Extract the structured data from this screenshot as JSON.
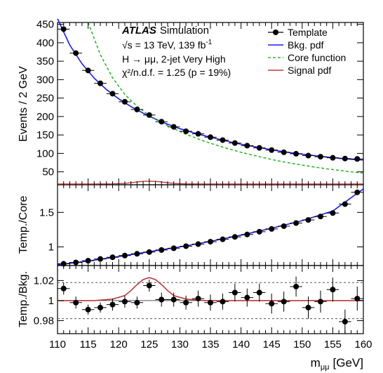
{
  "chart_data": {
    "type": "scatter",
    "experiment": "ATLAS",
    "experiment_suffix": "Simulation",
    "energy_line": "√s = 13 TeV, 139 fb",
    "lumi_exp": "-1",
    "channel_line": "H → μμ, 2-jet Very High",
    "chi2_line": "χ²/n.d.f. = 1.25 (p = 19%)",
    "xlabel": "m",
    "xlabel_sub": "μμ",
    "xlabel_unit": "[GeV]",
    "xlim": [
      110,
      160
    ],
    "xticks": [
      110,
      115,
      120,
      125,
      130,
      135,
      140,
      145,
      150,
      155,
      160
    ],
    "legend": [
      {
        "label": "Template",
        "style": "marker",
        "color": "#000000"
      },
      {
        "label": "Bkg. pdf",
        "style": "line",
        "color": "#1a1aff"
      },
      {
        "label": "Core function",
        "style": "dashed",
        "color": "#2db92d"
      },
      {
        "label": "Signal pdf",
        "style": "line",
        "color": "#c0393b"
      }
    ],
    "panels": [
      {
        "name": "main",
        "ylabel": "Events / 2 GeV",
        "ylim": [
          15,
          455
        ],
        "yticks": [
          50,
          100,
          150,
          200,
          250,
          300,
          350,
          400,
          450
        ],
        "series": [
          {
            "name": "Template",
            "x": [
              111,
              113,
              115,
              117,
              119,
              121,
              123,
              125,
              127,
              129,
              131,
              133,
              135,
              137,
              139,
              141,
              143,
              145,
              147,
              149,
              151,
              153,
              155,
              157,
              159
            ],
            "y": [
              437,
              372,
              325,
              290,
              262,
              240,
              219,
              204,
              186,
              172,
              160,
              153,
              144,
              136,
              128,
              121,
              115,
              109,
              103,
              99,
              94,
              91,
              88,
              86,
              85
            ]
          },
          {
            "name": "Bkg. pdf",
            "x": [
              110,
              112,
              114,
              116,
              118,
              120,
              122,
              124,
              126,
              128,
              130,
              132,
              134,
              136,
              138,
              140,
              142,
              144,
              146,
              148,
              150,
              152,
              154,
              156,
              158,
              160
            ],
            "y": [
              465,
              394,
              343,
              304,
              273,
              248,
              227,
              209,
              193,
              179,
              167,
              157,
              148,
              140,
              132,
              125,
              119,
              113,
              107,
              102,
              98,
              94,
              90,
              87,
              84,
              82
            ]
          },
          {
            "name": "Core function",
            "x": [
              115,
              117,
              119,
              121,
              123,
              125,
              128,
              131,
              134,
              137,
              140,
              143,
              146,
              149,
              152,
              155,
              158,
              160
            ],
            "y": [
              455,
              368,
              305,
              260,
              228,
              203,
              175,
              152,
              133,
              117,
              103,
              91,
              80,
              71,
              63,
              56,
              50,
              47
            ]
          }
        ]
      },
      {
        "name": "ratio-core",
        "ylabel": "Temp./Core",
        "ylim": [
          0.73,
          1.9
        ],
        "yticks": [
          1,
          1.5
        ],
        "series": [
          {
            "name": "Template",
            "x": [
              111,
              113,
              115,
              117,
              119,
              121,
              123,
              125,
              127,
              129,
              131,
              133,
              135,
              137,
              139,
              141,
              143,
              145,
              147,
              149,
              151,
              153,
              155,
              157,
              159
            ],
            "y": [
              0.755,
              0.775,
              0.8,
              0.825,
              0.85,
              0.875,
              0.9,
              0.925,
              0.955,
              0.98,
              1.01,
              1.04,
              1.075,
              1.11,
              1.145,
              1.18,
              1.22,
              1.26,
              1.3,
              1.345,
              1.39,
              1.44,
              1.49,
              1.62,
              1.79
            ]
          },
          {
            "name": "Bkg. pdf / Core",
            "x": [
              110,
              115,
              120,
              125,
              130,
              135,
              140,
              145,
              150,
              155,
              160
            ],
            "y": [
              0.74,
              0.795,
              0.86,
              0.93,
              1.0,
              1.08,
              1.17,
              1.27,
              1.38,
              1.52,
              1.84
            ]
          }
        ]
      },
      {
        "name": "ratio-bkg",
        "ylabel": "Temp./Bkg.",
        "ylim": [
          0.967,
          1.035
        ],
        "yticks": [
          0.98,
          1,
          1.02
        ],
        "ytick_labels": [
          "0.98",
          "1",
          "1.02"
        ],
        "reference_lines": [
          0.982,
          1.0,
          1.018
        ],
        "series": [
          {
            "name": "Template",
            "x": [
              111,
              113,
              115,
              117,
              119,
              121,
              123,
              125,
              127,
              129,
              131,
              133,
              135,
              137,
              139,
              141,
              143,
              145,
              147,
              149,
              151,
              153,
              155,
              157,
              159
            ],
            "y": [
              1.012,
              0.998,
              0.991,
              0.993,
              0.996,
              0.999,
              0.998,
              1.015,
              1.001,
              1.001,
              0.998,
              1.002,
              0.998,
              0.999,
              1.008,
              1.003,
              1.008,
              0.997,
              0.999,
              1.014,
              0.993,
              0.999,
              1.011,
              0.979,
              1.002
            ],
            "err": [
              0.006,
              0.006,
              0.005,
              0.005,
              0.006,
              0.006,
              0.006,
              0.006,
              0.007,
              0.007,
              0.007,
              0.008,
              0.008,
              0.008,
              0.009,
              0.009,
              0.009,
              0.01,
              0.01,
              0.01,
              0.011,
              0.011,
              0.012,
              0.012,
              0.012
            ]
          },
          {
            "name": "Signal pdf",
            "x": [
              110,
              116,
              119,
              121,
              122,
              123,
              124,
              125,
              126,
              127,
              128,
              129,
              131,
              134,
              160
            ],
            "y": [
              1.0,
              1.0,
              1.0015,
              1.005,
              1.01,
              1.016,
              1.021,
              1.023,
              1.021,
              1.016,
              1.01,
              1.005,
              1.0015,
              1.0,
              1.0
            ]
          }
        ]
      }
    ]
  }
}
